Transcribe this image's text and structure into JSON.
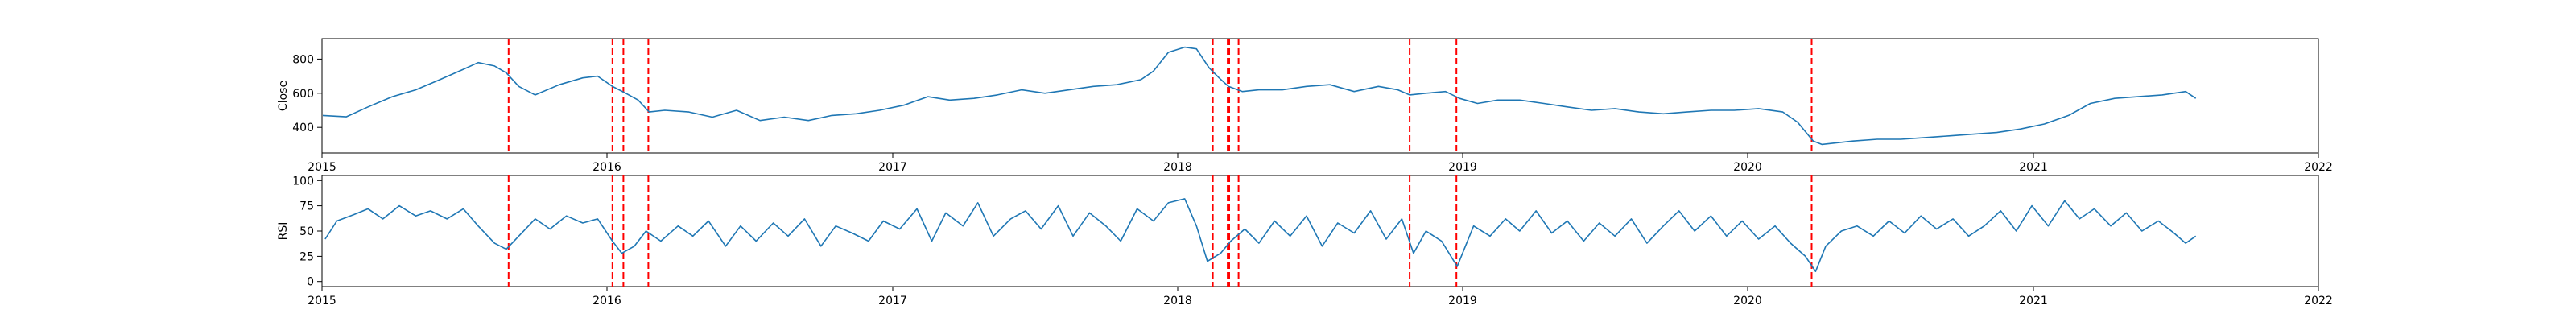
{
  "chart_data": [
    {
      "type": "line",
      "title": "",
      "xlabel": "",
      "ylabel": "Close",
      "xlim": [
        "2015-01-01",
        "2022-01-01"
      ],
      "ylim": [
        250,
        920
      ],
      "x_ticks": [
        "2015",
        "2016",
        "2017",
        "2018",
        "2019",
        "2020",
        "2021",
        "2022"
      ],
      "y_ticks": [
        400,
        600,
        800
      ],
      "grid": false,
      "legend": "none",
      "line_color": "#1f77b4",
      "event_color": "#ff0000",
      "series": [
        {
          "x": [
            "2015-01-02",
            "2015-02-01",
            "2015-03-01",
            "2015-04-01",
            "2015-05-01",
            "2015-06-01",
            "2015-07-01",
            "2015-07-20",
            "2015-08-10",
            "2015-08-25",
            "2015-09-10",
            "2015-10-01",
            "2015-11-01",
            "2015-12-01",
            "2015-12-20",
            "2016-01-08",
            "2016-01-25",
            "2016-02-10",
            "2016-02-24",
            "2016-03-15",
            "2016-04-15",
            "2016-05-15",
            "2016-06-15",
            "2016-07-15",
            "2016-08-15",
            "2016-09-15",
            "2016-10-15",
            "2016-11-15",
            "2016-12-15",
            "2017-01-15",
            "2017-02-15",
            "2017-03-15",
            "2017-04-15",
            "2017-05-15",
            "2017-06-15",
            "2017-07-15",
            "2017-08-15",
            "2017-09-15",
            "2017-10-15",
            "2017-11-15",
            "2017-12-01",
            "2017-12-20",
            "2018-01-10",
            "2018-01-25",
            "2018-02-10",
            "2018-02-23",
            "2018-03-07",
            "2018-03-25",
            "2018-04-15",
            "2018-05-15",
            "2018-06-15",
            "2018-07-15",
            "2018-08-15",
            "2018-09-15",
            "2018-10-10",
            "2018-10-25",
            "2018-11-15",
            "2018-12-10",
            "2018-12-28",
            "2019-01-20",
            "2019-02-15",
            "2019-03-15",
            "2019-04-15",
            "2019-05-15",
            "2019-06-15",
            "2019-07-15",
            "2019-08-15",
            "2019-09-15",
            "2019-10-15",
            "2019-11-15",
            "2019-12-15",
            "2020-01-15",
            "2020-02-15",
            "2020-03-05",
            "2020-03-25",
            "2020-04-05",
            "2020-04-25",
            "2020-05-15",
            "2020-06-15",
            "2020-07-15",
            "2020-08-15",
            "2020-09-15",
            "2020-10-15",
            "2020-11-15",
            "2020-12-15",
            "2021-01-15",
            "2021-02-15",
            "2021-03-15",
            "2021-04-15",
            "2021-05-15",
            "2021-06-15",
            "2021-07-15",
            "2021-07-28"
          ],
          "values": [
            470,
            462,
            520,
            580,
            620,
            680,
            740,
            780,
            760,
            720,
            640,
            590,
            650,
            690,
            700,
            640,
            600,
            560,
            490,
            500,
            490,
            460,
            500,
            440,
            460,
            440,
            470,
            480,
            500,
            530,
            580,
            560,
            570,
            590,
            620,
            600,
            620,
            640,
            650,
            680,
            730,
            840,
            870,
            860,
            750,
            690,
            640,
            610,
            620,
            620,
            640,
            650,
            610,
            640,
            620,
            590,
            600,
            610,
            570,
            540,
            560,
            560,
            540,
            520,
            500,
            510,
            490,
            480,
            490,
            500,
            500,
            510,
            490,
            430,
            320,
            300,
            310,
            320,
            330,
            330,
            340,
            350,
            360,
            370,
            390,
            420,
            470,
            540,
            570,
            580,
            590,
            610,
            570
          ]
        }
      ]
    },
    {
      "type": "line",
      "title": "",
      "xlabel": "",
      "ylabel": "RSI",
      "xlim": [
        "2015-01-01",
        "2022-01-01"
      ],
      "ylim": [
        -5,
        105
      ],
      "x_ticks": [
        "2015",
        "2016",
        "2017",
        "2018",
        "2019",
        "2020",
        "2021",
        "2022"
      ],
      "y_ticks": [
        0,
        25,
        50,
        75,
        100
      ],
      "grid": false,
      "legend": "none",
      "line_color": "#1f77b4",
      "event_color": "#ff0000",
      "series": [
        {
          "x": [
            "2015-01-05",
            "2015-01-20",
            "2015-02-10",
            "2015-03-01",
            "2015-03-20",
            "2015-04-10",
            "2015-05-01",
            "2015-05-20",
            "2015-06-10",
            "2015-07-01",
            "2015-07-20",
            "2015-08-10",
            "2015-08-25",
            "2015-09-10",
            "2015-10-01",
            "2015-10-20",
            "2015-11-10",
            "2015-12-01",
            "2015-12-20",
            "2016-01-08",
            "2016-01-20",
            "2016-02-05",
            "2016-02-20",
            "2016-03-10",
            "2016-04-01",
            "2016-04-20",
            "2016-05-10",
            "2016-06-01",
            "2016-06-20",
            "2016-07-10",
            "2016-08-01",
            "2016-08-20",
            "2016-09-10",
            "2016-10-01",
            "2016-10-20",
            "2016-11-10",
            "2016-12-01",
            "2016-12-20",
            "2017-01-10",
            "2017-02-01",
            "2017-02-20",
            "2017-03-10",
            "2017-04-01",
            "2017-04-20",
            "2017-05-10",
            "2017-06-01",
            "2017-06-20",
            "2017-07-10",
            "2017-08-01",
            "2017-08-20",
            "2017-09-10",
            "2017-10-01",
            "2017-10-20",
            "2017-11-10",
            "2017-12-01",
            "2017-12-20",
            "2018-01-10",
            "2018-01-25",
            "2018-02-08",
            "2018-02-25",
            "2018-03-10",
            "2018-03-28",
            "2018-04-15",
            "2018-05-05",
            "2018-05-25",
            "2018-06-15",
            "2018-07-05",
            "2018-07-25",
            "2018-08-15",
            "2018-09-05",
            "2018-09-25",
            "2018-10-15",
            "2018-10-30",
            "2018-11-15",
            "2018-12-05",
            "2018-12-25",
            "2019-01-15",
            "2019-02-05",
            "2019-02-25",
            "2019-03-15",
            "2019-04-05",
            "2019-04-25",
            "2019-05-15",
            "2019-06-05",
            "2019-06-25",
            "2019-07-15",
            "2019-08-05",
            "2019-08-25",
            "2019-09-15",
            "2019-10-05",
            "2019-10-25",
            "2019-11-15",
            "2019-12-05",
            "2019-12-25",
            "2020-01-15",
            "2020-02-05",
            "2020-02-25",
            "2020-03-15",
            "2020-03-28",
            "2020-04-10",
            "2020-04-30",
            "2020-05-20",
            "2020-06-10",
            "2020-06-30",
            "2020-07-20",
            "2020-08-10",
            "2020-08-30",
            "2020-09-20",
            "2020-10-10",
            "2020-10-30",
            "2020-11-20",
            "2020-12-10",
            "2020-12-30",
            "2021-01-20",
            "2021-02-10",
            "2021-03-01",
            "2021-03-20",
            "2021-04-10",
            "2021-04-30",
            "2021-05-20",
            "2021-06-10",
            "2021-06-30",
            "2021-07-15",
            "2021-07-28"
          ],
          "values": [
            42,
            60,
            66,
            72,
            62,
            75,
            65,
            70,
            62,
            72,
            55,
            38,
            32,
            45,
            62,
            52,
            65,
            58,
            62,
            40,
            28,
            35,
            50,
            40,
            55,
            45,
            60,
            35,
            55,
            40,
            58,
            45,
            62,
            35,
            55,
            48,
            40,
            60,
            52,
            72,
            40,
            68,
            55,
            78,
            45,
            62,
            70,
            52,
            75,
            45,
            68,
            55,
            40,
            72,
            60,
            78,
            82,
            55,
            20,
            28,
            40,
            52,
            38,
            60,
            45,
            65,
            35,
            58,
            48,
            70,
            42,
            62,
            28,
            50,
            40,
            15,
            55,
            45,
            62,
            50,
            70,
            48,
            60,
            40,
            58,
            45,
            62,
            38,
            55,
            70,
            50,
            65,
            45,
            60,
            42,
            55,
            38,
            25,
            10,
            35,
            50,
            55,
            45,
            60,
            48,
            65,
            52,
            62,
            45,
            55,
            70,
            50,
            75,
            55,
            80,
            62,
            72,
            55,
            68,
            50,
            60,
            48,
            38,
            45
          ]
        }
      ]
    }
  ],
  "event_dates": [
    "2015-08-28",
    "2016-01-08",
    "2016-01-22",
    "2016-02-23",
    "2018-02-15",
    "2018-03-06",
    "2018-03-08",
    "2018-03-20",
    "2018-10-25",
    "2018-12-24",
    "2020-03-23"
  ]
}
